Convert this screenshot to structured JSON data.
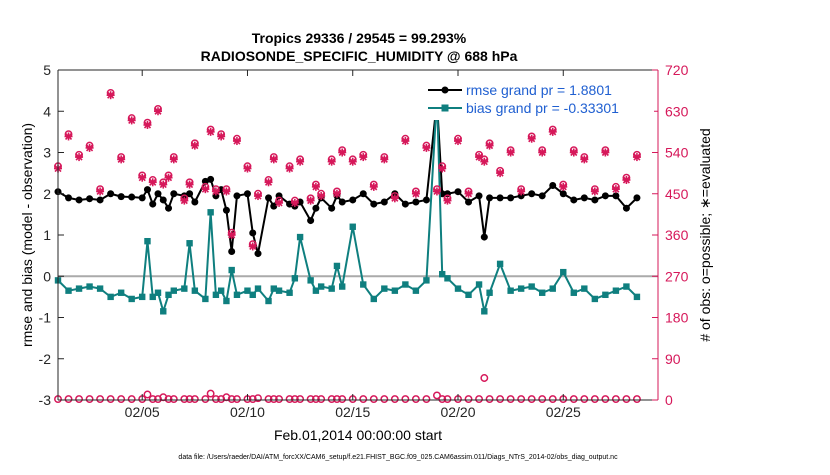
{
  "chart_data": {
    "type": "line",
    "title_line1": "Tropics 29336 / 29545 = 99.293%",
    "title_line2": "RADIOSONDE_SPECIFIC_HUMIDITY @ 688 hPa",
    "xlabel": "Feb.01,2014 00:00:00 start",
    "ylabel_left": "rmse and bias (model - observation)",
    "ylabel_right": "# of obs: o=possible; ∗=evaluated",
    "footer": "data file: /Users/raeder/DAI/ATM_forcXX/CAM6_setup/f.e21.FHIST_BGC.f09_025.CAM6assim.011/Diags_NTrS_2014-02/obs_diag_output.nc",
    "xlim": [
      1.0,
      29.5
    ],
    "ylim_left": [
      -3,
      5
    ],
    "ylim_right": [
      0,
      720
    ],
    "x_ticks": [
      5,
      10,
      15,
      20,
      25
    ],
    "x_tick_labels": [
      "02/05",
      "02/10",
      "02/15",
      "02/20",
      "02/25"
    ],
    "y_left_ticks": [
      -3,
      -2,
      -1,
      0,
      1,
      2,
      3,
      4,
      5
    ],
    "y_left_tick_labels": [
      "-3",
      "-2",
      "-1",
      "0",
      "1",
      "2",
      "3",
      "4",
      "5"
    ],
    "y_right_ticks": [
      0,
      90,
      180,
      270,
      360,
      450,
      540,
      630,
      720
    ],
    "y_right_tick_labels": [
      "0",
      "90",
      "180",
      "270",
      "360",
      "450",
      "540",
      "630",
      "720"
    ],
    "zero_line": 0,
    "legend": [
      {
        "label": "rmse grand pr = 1.8801",
        "color": "#000000"
      },
      {
        "label": "bias grand pr = -0.33301",
        "color": "#0f7f7f"
      }
    ],
    "series": [
      {
        "name": "rmse",
        "color": "#000000",
        "axis": "left",
        "x": [
          1.0,
          1.5,
          2.0,
          2.5,
          3.0,
          3.5,
          4.0,
          4.5,
          5.0,
          5.25,
          5.5,
          5.75,
          6.0,
          6.25,
          6.5,
          7.0,
          7.25,
          7.5,
          8.0,
          8.25,
          8.5,
          8.75,
          9.0,
          9.25,
          9.5,
          10.0,
          10.25,
          10.5,
          11.0,
          11.25,
          11.5,
          12.0,
          12.25,
          12.5,
          13.0,
          13.25,
          13.5,
          14.0,
          14.25,
          14.5,
          15.0,
          15.5,
          16.0,
          16.5,
          17.0,
          17.5,
          18.0,
          18.5,
          19.0,
          19.25,
          19.5,
          20.0,
          20.5,
          21.0,
          21.25,
          21.5,
          22.0,
          22.5,
          23.0,
          23.5,
          24.0,
          24.5,
          25.0,
          25.5,
          26.0,
          26.5,
          27.0,
          27.5,
          28.0,
          28.5
        ],
        "values": [
          2.05,
          1.9,
          1.85,
          1.88,
          1.85,
          2.0,
          1.93,
          1.92,
          1.9,
          2.1,
          1.75,
          2.0,
          1.85,
          1.65,
          2.0,
          1.95,
          2.0,
          1.8,
          2.3,
          2.35,
          1.95,
          2.1,
          1.6,
          0.6,
          1.95,
          2.0,
          1.05,
          0.55,
          1.9,
          1.7,
          1.95,
          1.75,
          1.7,
          1.8,
          1.35,
          1.65,
          1.9,
          1.65,
          1.95,
          1.8,
          1.85,
          2.0,
          1.75,
          1.8,
          2.0,
          1.75,
          1.8,
          1.85,
          4.25,
          2.0,
          2.0,
          2.05,
          1.8,
          1.95,
          0.95,
          1.9,
          1.9,
          1.9,
          1.95,
          2.0,
          1.95,
          2.2,
          2.0,
          1.85,
          1.9,
          1.85,
          1.95,
          1.95,
          1.65,
          1.9
        ]
      },
      {
        "name": "bias",
        "color": "#0f7f7f",
        "axis": "left",
        "x": [
          1.0,
          1.5,
          2.0,
          2.5,
          3.0,
          3.5,
          4.0,
          4.5,
          5.0,
          5.25,
          5.5,
          5.75,
          6.0,
          6.25,
          6.5,
          7.0,
          7.25,
          7.5,
          8.0,
          8.25,
          8.5,
          8.75,
          9.0,
          9.25,
          9.5,
          10.0,
          10.25,
          10.5,
          11.0,
          11.25,
          11.5,
          12.0,
          12.25,
          12.5,
          13.0,
          13.25,
          13.5,
          14.0,
          14.25,
          14.5,
          15.0,
          15.5,
          16.0,
          16.5,
          17.0,
          17.5,
          18.0,
          18.5,
          19.0,
          19.25,
          19.5,
          20.0,
          20.5,
          21.0,
          21.25,
          21.5,
          22.0,
          22.5,
          23.0,
          23.5,
          24.0,
          24.5,
          25.0,
          25.5,
          26.0,
          26.5,
          27.0,
          27.5,
          28.0,
          28.5
        ],
        "values": [
          -0.1,
          -0.35,
          -0.3,
          -0.25,
          -0.3,
          -0.5,
          -0.4,
          -0.55,
          -0.5,
          0.85,
          -0.5,
          -0.4,
          -0.85,
          -0.45,
          -0.35,
          -0.3,
          0.8,
          -0.35,
          -0.55,
          1.55,
          -0.45,
          -0.35,
          -0.6,
          0.15,
          -0.45,
          -0.35,
          -0.45,
          -0.3,
          -0.6,
          -0.3,
          -0.35,
          -0.4,
          -0.05,
          0.95,
          -0.1,
          -0.35,
          -0.25,
          -0.3,
          0.25,
          -0.25,
          1.2,
          -0.2,
          -0.55,
          -0.3,
          -0.35,
          -0.2,
          -0.35,
          -0.1,
          4.35,
          0.05,
          -0.05,
          -0.3,
          -0.45,
          -0.2,
          -0.85,
          -0.4,
          0.3,
          -0.35,
          -0.3,
          -0.25,
          -0.4,
          -0.3,
          0.1,
          -0.4,
          -0.3,
          -0.55,
          -0.45,
          -0.35,
          -0.25,
          -0.5
        ]
      },
      {
        "name": "# obs possible",
        "color": "#d6185a",
        "axis": "right",
        "marker": "circle",
        "x": [
          1.0,
          1.5,
          2.0,
          2.5,
          3.0,
          3.5,
          4.0,
          4.5,
          5.0,
          5.25,
          5.5,
          5.75,
          6.0,
          6.25,
          6.5,
          7.0,
          7.25,
          7.5,
          8.0,
          8.25,
          8.5,
          8.75,
          9.0,
          9.25,
          9.5,
          10.0,
          10.25,
          10.5,
          11.0,
          11.25,
          11.5,
          12.0,
          12.25,
          12.5,
          13.0,
          13.25,
          13.5,
          14.0,
          14.25,
          14.5,
          15.0,
          15.5,
          16.0,
          16.5,
          17.0,
          17.5,
          18.0,
          18.5,
          19.0,
          19.25,
          19.5,
          20.0,
          20.5,
          21.0,
          21.25,
          21.5,
          22.0,
          22.5,
          23.0,
          23.5,
          24.0,
          24.5,
          25.0,
          25.5,
          26.0,
          26.5,
          27.0,
          27.5,
          28.0,
          28.5
        ],
        "values": [
          510,
          580,
          535,
          555,
          460,
          670,
          530,
          615,
          490,
          605,
          480,
          635,
          475,
          490,
          530,
          440,
          475,
          560,
          465,
          590,
          460,
          580,
          460,
          365,
          570,
          510,
          340,
          450,
          480,
          530,
          435,
          510,
          435,
          525,
          440,
          470,
          450,
          525,
          455,
          545,
          525,
          535,
          470,
          530,
          445,
          570,
          455,
          555,
          460,
          510,
          440,
          570,
          455,
          535,
          525,
          560,
          500,
          545,
          460,
          575,
          545,
          590,
          470,
          545,
          530,
          460,
          545,
          465,
          485,
          535
        ]
      },
      {
        "name": "# obs evaluated",
        "color": "#d6185a",
        "axis": "right",
        "marker": "asterisk",
        "x": [
          1.0,
          1.5,
          2.0,
          2.5,
          3.0,
          3.5,
          4.0,
          4.5,
          5.0,
          5.25,
          5.5,
          5.75,
          6.0,
          6.25,
          6.5,
          7.0,
          7.25,
          7.5,
          8.0,
          8.25,
          8.5,
          8.75,
          9.0,
          9.25,
          9.5,
          10.0,
          10.25,
          10.5,
          11.0,
          11.25,
          11.5,
          12.0,
          12.25,
          12.5,
          13.0,
          13.25,
          13.5,
          14.0,
          14.25,
          14.5,
          15.0,
          15.5,
          16.0,
          16.5,
          17.0,
          17.5,
          18.0,
          18.5,
          19.0,
          19.25,
          19.5,
          20.0,
          20.5,
          21.0,
          21.25,
          21.5,
          22.0,
          22.5,
          23.0,
          23.5,
          24.0,
          24.5,
          25.0,
          25.5,
          26.0,
          26.5,
          27.0,
          27.5,
          28.0,
          28.5
        ],
        "values": [
          505,
          575,
          530,
          550,
          455,
          665,
          525,
          610,
          485,
          600,
          475,
          630,
          470,
          485,
          525,
          435,
          470,
          555,
          460,
          585,
          455,
          575,
          455,
          360,
          565,
          505,
          335,
          445,
          475,
          525,
          430,
          505,
          430,
          520,
          435,
          465,
          445,
          520,
          450,
          540,
          520,
          530,
          465,
          525,
          440,
          565,
          450,
          550,
          455,
          505,
          435,
          565,
          450,
          530,
          520,
          555,
          495,
          540,
          455,
          570,
          540,
          585,
          465,
          540,
          525,
          455,
          540,
          460,
          480,
          530
        ]
      },
      {
        "name": "# obs bottom possible",
        "color": "#d6185a",
        "axis": "right",
        "marker": "circle",
        "x": [
          1.0,
          1.5,
          2.0,
          2.5,
          3.0,
          3.5,
          4.0,
          4.5,
          5.0,
          5.25,
          5.5,
          5.75,
          6.0,
          6.25,
          6.5,
          7.0,
          7.25,
          7.5,
          8.0,
          8.25,
          8.5,
          8.75,
          9.0,
          9.25,
          9.5,
          10.0,
          10.25,
          10.5,
          11.0,
          11.25,
          11.5,
          12.0,
          12.25,
          12.5,
          13.0,
          13.25,
          13.5,
          14.0,
          14.25,
          14.5,
          15.0,
          15.5,
          16.0,
          16.5,
          17.0,
          17.5,
          18.0,
          18.5,
          19.0,
          19.25,
          19.5,
          20.0,
          20.5,
          21.0,
          21.25,
          21.5,
          22.0,
          22.5,
          23.0,
          23.5,
          24.0,
          24.5,
          25.0,
          25.5,
          26.0,
          26.5,
          27.0,
          27.5,
          28.0,
          28.5
        ],
        "values": [
          2,
          2,
          2,
          2,
          2,
          2,
          2,
          2,
          2,
          12,
          2,
          2,
          6,
          2,
          2,
          2,
          2,
          2,
          2,
          14,
          2,
          2,
          6,
          2,
          2,
          2,
          2,
          4,
          2,
          2,
          2,
          2,
          2,
          2,
          2,
          2,
          2,
          2,
          2,
          2,
          2,
          2,
          2,
          2,
          2,
          2,
          2,
          2,
          10,
          2,
          2,
          2,
          2,
          2,
          48,
          2,
          2,
          2,
          2,
          2,
          2,
          2,
          2,
          2,
          2,
          2,
          2,
          2,
          2,
          2
        ]
      }
    ]
  }
}
